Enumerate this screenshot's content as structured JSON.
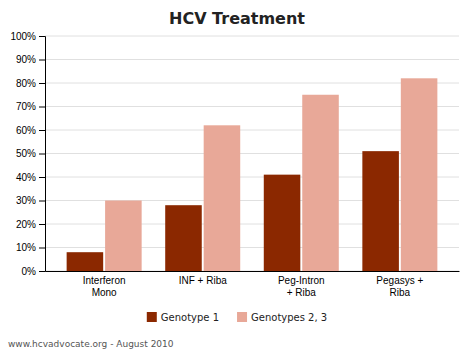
{
  "chart_data": {
    "type": "bar",
    "title": "HCV Treatment",
    "categories": [
      "Interferon\nMono",
      "INF + Riba",
      "Peg-Intron\n+ Riba",
      "Pegasys +\nRiba"
    ],
    "series": [
      {
        "name": "Genotype 1",
        "color": "#8B2800",
        "values": [
          8,
          28,
          41,
          51
        ]
      },
      {
        "name": "Genotypes 2, 3",
        "color": "#E8A898",
        "values": [
          30,
          62,
          75,
          82
        ]
      }
    ],
    "ylim": [
      0,
      100
    ],
    "yticks": [
      {
        "value": 0,
        "label": "0%"
      },
      {
        "value": 10,
        "label": "10%"
      },
      {
        "value": 20,
        "label": "20%"
      },
      {
        "value": 30,
        "label": "30%"
      },
      {
        "value": 40,
        "label": "40%"
      },
      {
        "value": 50,
        "label": "50%"
      },
      {
        "value": 60,
        "label": "60%"
      },
      {
        "value": 70,
        "label": "70%"
      },
      {
        "value": 80,
        "label": "80%"
      },
      {
        "value": 90,
        "label": "90%"
      },
      {
        "value": 100,
        "label": "100%"
      }
    ],
    "grid": true,
    "legend": "bottom",
    "annotations": [
      "www.hcvadvocate.org - August 2010"
    ]
  }
}
